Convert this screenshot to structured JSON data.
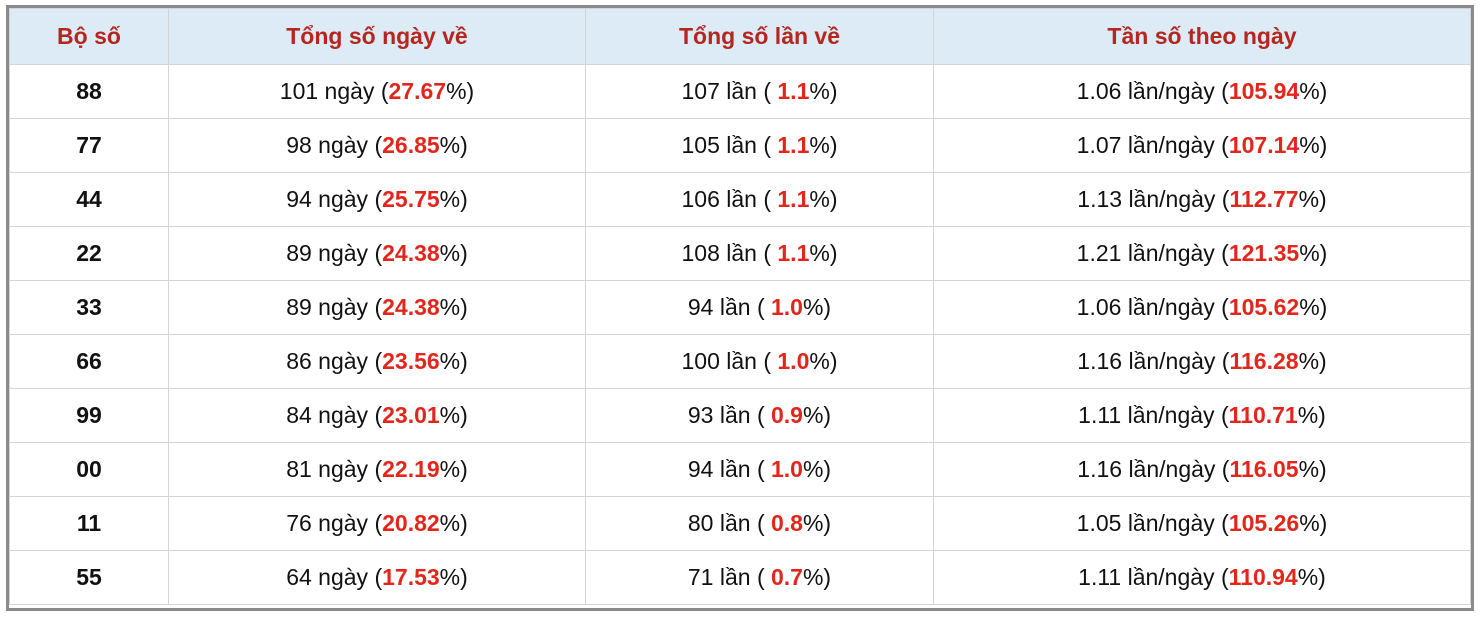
{
  "table": {
    "header": [
      "Bộ số",
      "Tổng số ngày về",
      "Tổng số lần về",
      "Tần số theo ngày"
    ],
    "rows": [
      {
        "num": "88",
        "days": [
          "101 ngày (",
          "27.67",
          "%)"
        ],
        "times": [
          "107 lần ( ",
          "1.1",
          "%)"
        ],
        "freq": [
          "1.06 lần/ngày (",
          "105.94",
          "%)"
        ]
      },
      {
        "num": "77",
        "days": [
          "98 ngày (",
          "26.85",
          "%)"
        ],
        "times": [
          "105 lần ( ",
          "1.1",
          "%)"
        ],
        "freq": [
          "1.07 lần/ngày (",
          "107.14",
          "%)"
        ]
      },
      {
        "num": "44",
        "days": [
          "94 ngày (",
          "25.75",
          "%)"
        ],
        "times": [
          "106 lần ( ",
          "1.1",
          "%)"
        ],
        "freq": [
          "1.13 lần/ngày (",
          "112.77",
          "%)"
        ]
      },
      {
        "num": "22",
        "days": [
          "89 ngày (",
          "24.38",
          "%)"
        ],
        "times": [
          "108 lần ( ",
          "1.1",
          "%)"
        ],
        "freq": [
          "1.21 lần/ngày (",
          "121.35",
          "%)"
        ]
      },
      {
        "num": "33",
        "days": [
          "89 ngày (",
          "24.38",
          "%)"
        ],
        "times": [
          "94 lần ( ",
          "1.0",
          "%)"
        ],
        "freq": [
          "1.06 lần/ngày (",
          "105.62",
          "%)"
        ]
      },
      {
        "num": "66",
        "days": [
          "86 ngày (",
          "23.56",
          "%)"
        ],
        "times": [
          "100 lần ( ",
          "1.0",
          "%)"
        ],
        "freq": [
          "1.16 lần/ngày (",
          "116.28",
          "%)"
        ]
      },
      {
        "num": "99",
        "days": [
          "84 ngày (",
          "23.01",
          "%)"
        ],
        "times": [
          "93 lần ( ",
          "0.9",
          "%)"
        ],
        "freq": [
          "1.11 lần/ngày (",
          "110.71",
          "%)"
        ]
      },
      {
        "num": "00",
        "days": [
          "81 ngày (",
          "22.19",
          "%)"
        ],
        "times": [
          "94 lần ( ",
          "1.0",
          "%)"
        ],
        "freq": [
          "1.16 lần/ngày (",
          "116.05",
          "%)"
        ]
      },
      {
        "num": "11",
        "days": [
          "76 ngày (",
          "20.82",
          "%)"
        ],
        "times": [
          "80 lần ( ",
          "0.8",
          "%)"
        ],
        "freq": [
          "1.05 lần/ngày (",
          "105.26",
          "%)"
        ]
      },
      {
        "num": "55",
        "days": [
          "64 ngày (",
          "17.53",
          "%)"
        ],
        "times": [
          "71 lần ( ",
          "0.7",
          "%)"
        ],
        "freq": [
          "1.11 lần/ngày (",
          "110.94",
          "%)"
        ]
      }
    ]
  }
}
